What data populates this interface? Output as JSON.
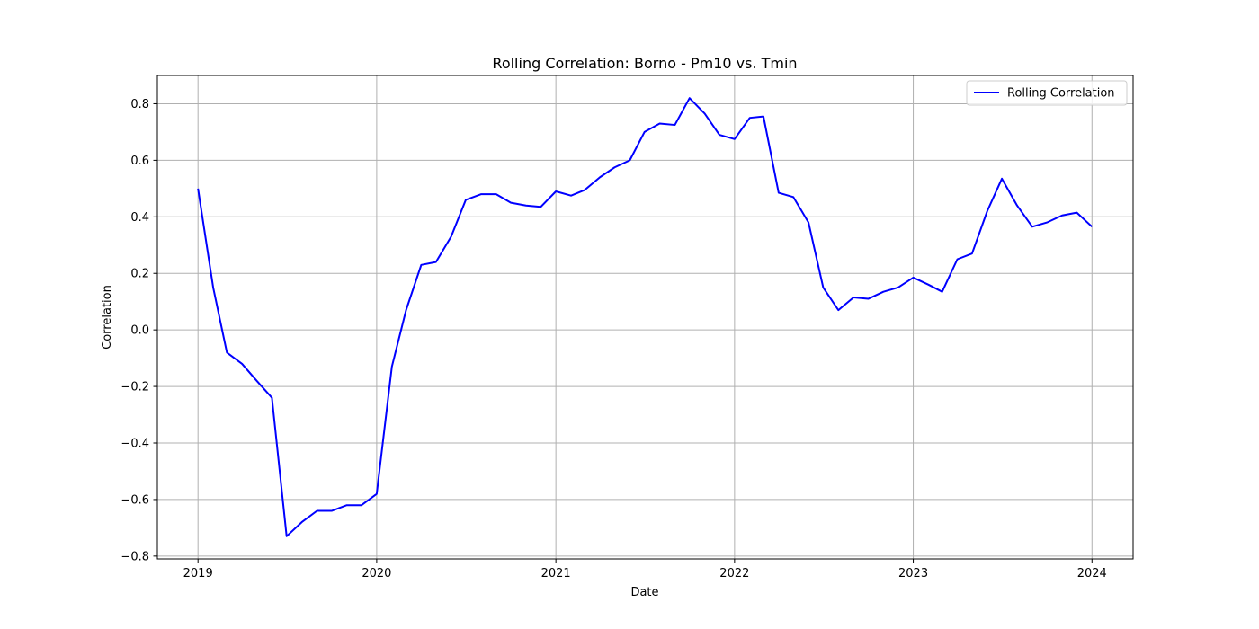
{
  "chart_data": {
    "type": "line",
    "title": "Rolling Correlation: Borno - Pm10 vs. Tmin",
    "xlabel": "Date",
    "ylabel": "Correlation",
    "x_ticks": [
      "2019",
      "2020",
      "2021",
      "2022",
      "2023",
      "2024"
    ],
    "y_ticks": [
      "−0.8",
      "−0.6",
      "−0.4",
      "−0.2",
      "0.0",
      "0.2",
      "0.4",
      "0.6",
      "0.8"
    ],
    "y_tick_values": [
      -0.8,
      -0.6,
      -0.4,
      -0.2,
      0.0,
      0.2,
      0.4,
      0.6,
      0.8
    ],
    "ylim": [
      -0.81,
      0.9
    ],
    "xlim": [
      "2018-10-10",
      "2024-03-25"
    ],
    "grid": true,
    "legend_position": "top-right",
    "series": [
      {
        "name": "Rolling Correlation",
        "color": "#0000ff",
        "x": [
          "2019-01",
          "2019-02",
          "2019-03",
          "2019-04",
          "2019-05",
          "2019-06",
          "2019-07",
          "2019-08",
          "2019-09",
          "2019-10",
          "2019-11",
          "2019-12",
          "2020-01",
          "2020-02",
          "2020-03",
          "2020-04",
          "2020-05",
          "2020-06",
          "2020-07",
          "2020-08",
          "2020-09",
          "2020-10",
          "2020-11",
          "2020-12",
          "2021-01",
          "2021-02",
          "2021-03",
          "2021-04",
          "2021-05",
          "2021-06",
          "2021-07",
          "2021-08",
          "2021-09",
          "2021-10",
          "2021-11",
          "2021-12",
          "2022-01",
          "2022-02",
          "2022-03",
          "2022-04",
          "2022-05",
          "2022-06",
          "2022-07",
          "2022-08",
          "2022-09",
          "2022-10",
          "2022-11",
          "2022-12",
          "2023-01",
          "2023-02",
          "2023-03",
          "2023-04",
          "2023-05",
          "2023-06",
          "2023-07",
          "2023-08",
          "2023-09",
          "2023-10",
          "2023-11",
          "2023-12",
          "2024-01"
        ],
        "values": [
          0.5,
          0.15,
          -0.08,
          -0.12,
          -0.18,
          -0.24,
          -0.73,
          -0.68,
          -0.64,
          -0.64,
          -0.62,
          -0.62,
          -0.58,
          -0.13,
          0.07,
          0.23,
          0.24,
          0.33,
          0.46,
          0.48,
          0.48,
          0.45,
          0.44,
          0.435,
          0.49,
          0.475,
          0.495,
          0.54,
          0.575,
          0.6,
          0.7,
          0.73,
          0.725,
          0.82,
          0.765,
          0.69,
          0.675,
          0.75,
          0.755,
          0.485,
          0.47,
          0.38,
          0.15,
          0.07,
          0.115,
          0.11,
          0.135,
          0.15,
          0.185,
          0.16,
          0.135,
          0.25,
          0.27,
          0.42,
          0.535,
          0.44,
          0.365,
          0.38,
          0.405,
          0.415,
          0.365
        ]
      }
    ]
  }
}
